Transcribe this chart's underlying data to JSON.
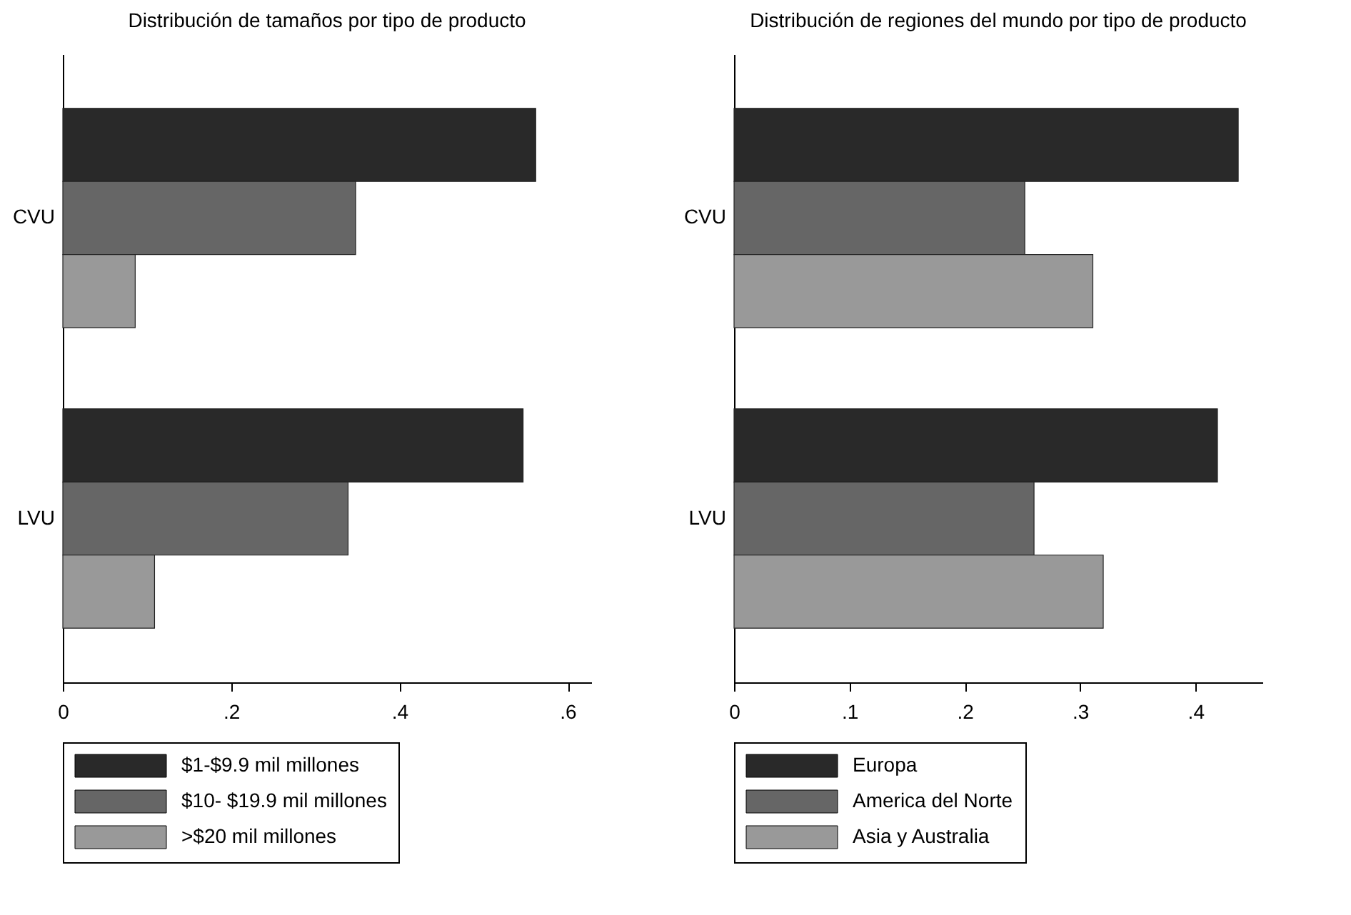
{
  "chart_data": [
    {
      "type": "bar",
      "orientation": "horizontal",
      "title": "Distribución de tamaños por tipo de producto",
      "categories": [
        "CVU",
        "LVU"
      ],
      "series": [
        {
          "name": "$1-$9.9 mil millones",
          "color": "#292929",
          "values": [
            0.562,
            0.547
          ]
        },
        {
          "name": "$10- $19.9 mil millones",
          "color": "#666666",
          "values": [
            0.348,
            0.339
          ]
        },
        {
          "name": ">$20 mil millones",
          "color": "#999999",
          "values": [
            0.086,
            0.109
          ]
        }
      ],
      "xlim": [
        0,
        0.628
      ],
      "xticks": [
        0,
        {
          "value": 0.2,
          "label": ".2"
        },
        {
          "value": 0.4,
          "label": ".4"
        },
        {
          "value": 0.6,
          "label": ".6"
        }
      ],
      "legend": "bottom"
    },
    {
      "type": "bar",
      "orientation": "horizontal",
      "title": "Distribución de regiones del mundo por tipo de producto",
      "categories": [
        "CVU",
        "LVU"
      ],
      "series": [
        {
          "name": "Europa",
          "color": "#292929",
          "values": [
            0.437,
            0.419
          ]
        },
        {
          "name": "America del Norte",
          "color": "#666666",
          "values": [
            0.252,
            0.26
          ]
        },
        {
          "name": "Asia y Australia",
          "color": "#999999",
          "values": [
            0.311,
            0.32
          ]
        }
      ],
      "xlim": [
        0,
        0.458
      ],
      "xticks": [
        0,
        {
          "value": 0.1,
          "label": ".1"
        },
        {
          "value": 0.2,
          "label": ".2"
        },
        {
          "value": 0.3,
          "label": ".3"
        },
        {
          "value": 0.4,
          "label": ".4"
        }
      ],
      "legend": "bottom"
    }
  ]
}
